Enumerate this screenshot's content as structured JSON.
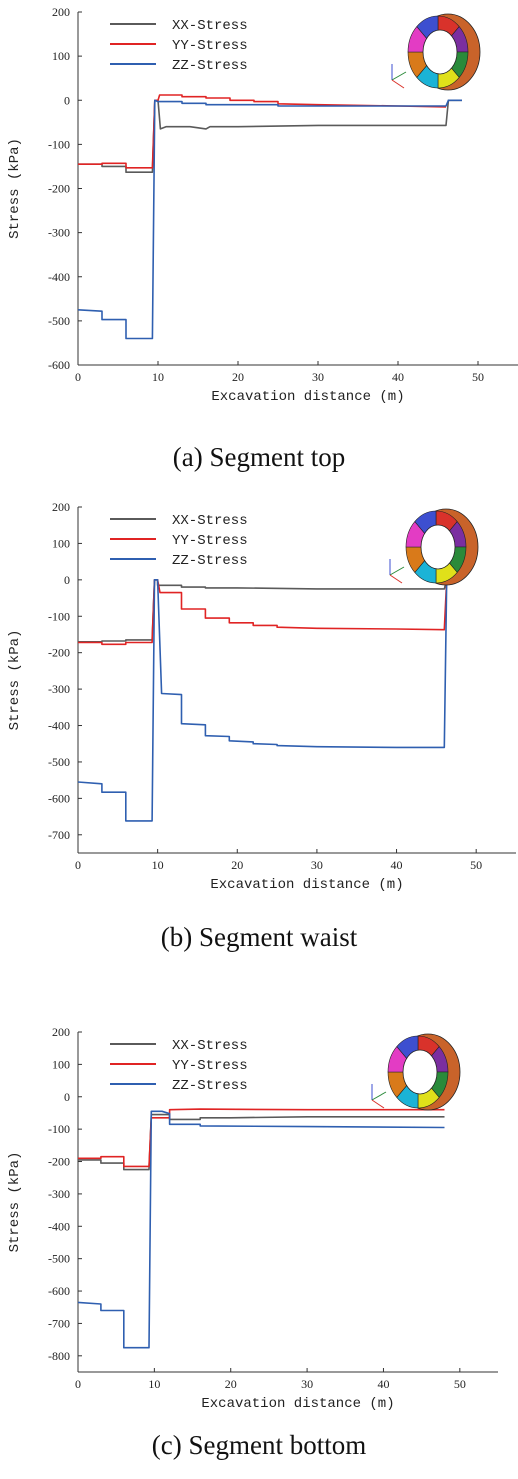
{
  "colors": {
    "xx": "#5a5a5a",
    "yy": "#e02424",
    "zz": "#2f5fb0"
  },
  "chart_data": [
    {
      "type": "line",
      "caption": "(a) Segment top",
      "xlabel": "Excavation distance (m)",
      "ylabel": "Stress (kPa)",
      "xlim": [
        0,
        55
      ],
      "ylim": [
        -600,
        200
      ],
      "xticks": [
        0,
        10,
        20,
        30,
        40,
        50
      ],
      "yticks": [
        200,
        100,
        0,
        -100,
        -200,
        -300,
        -400,
        -500,
        -600
      ],
      "legend_position": "top-left",
      "series": [
        {
          "name": "XX-Stress",
          "color": "#5a5a5a",
          "x": [
            0,
            3,
            3,
            6,
            6,
            9.3,
            9.6,
            10,
            10.3,
            11,
            14,
            16,
            16.5,
            20,
            30,
            46,
            46.3,
            48
          ],
          "y": [
            -145,
            -145,
            -150,
            -150,
            -163,
            -163,
            0,
            0,
            -65,
            -60,
            -60,
            -65,
            -60,
            -60,
            -57,
            -57,
            0,
            0
          ]
        },
        {
          "name": "YY-Stress",
          "color": "#e02424",
          "x": [
            0,
            3,
            3,
            6,
            6,
            9.3,
            9.6,
            10,
            10.2,
            12,
            13,
            13,
            16,
            16,
            19,
            19,
            22,
            22,
            25,
            25,
            30,
            40,
            46
          ],
          "y": [
            -145,
            -145,
            -143,
            -143,
            -153,
            -153,
            0,
            0,
            12,
            12,
            12,
            8,
            8,
            5,
            5,
            0,
            0,
            -3,
            -3,
            -8,
            -10,
            -13,
            -15
          ]
        },
        {
          "name": "ZZ-Stress",
          "color": "#2f5fb0",
          "x": [
            0,
            3,
            3,
            6,
            6,
            9.3,
            9.6,
            10,
            13,
            13,
            16,
            16,
            25,
            25,
            46,
            46.3,
            48
          ],
          "y": [
            -475,
            -478,
            -497,
            -497,
            -540,
            -540,
            0,
            -3,
            -3,
            -7,
            -7,
            -10,
            -10,
            -13,
            -13,
            0,
            0
          ]
        }
      ]
    },
    {
      "type": "line",
      "caption": "(b) Segment waist",
      "xlabel": "Excavation distance (m)",
      "ylabel": "Stress (kPa)",
      "xlim": [
        0,
        55
      ],
      "ylim": [
        -750,
        200
      ],
      "xticks": [
        0,
        10,
        20,
        30,
        40,
        50
      ],
      "yticks": [
        200,
        100,
        0,
        -100,
        -200,
        -300,
        -400,
        -500,
        -600,
        -700
      ],
      "legend_position": "top-left",
      "series": [
        {
          "name": "XX-Stress",
          "color": "#5a5a5a",
          "x": [
            0,
            3,
            3,
            6,
            6,
            9.3,
            9.6,
            10,
            10,
            13,
            13,
            16,
            16,
            20,
            30,
            46,
            46.3,
            48
          ],
          "y": [
            -170,
            -170,
            -168,
            -168,
            -165,
            -165,
            0,
            0,
            -15,
            -15,
            -20,
            -20,
            -22,
            -22,
            -25,
            -25,
            0,
            0
          ]
        },
        {
          "name": "YY-Stress",
          "color": "#e02424",
          "x": [
            0,
            3,
            3,
            6,
            6,
            9.3,
            9.6,
            10,
            10.3,
            13,
            13,
            16,
            16,
            19,
            19,
            22,
            22,
            25,
            25,
            30,
            40,
            46,
            46.3,
            48
          ],
          "y": [
            -172,
            -172,
            -177,
            -177,
            -172,
            -172,
            0,
            0,
            -35,
            -35,
            -80,
            -80,
            -105,
            -105,
            -118,
            -118,
            -125,
            -125,
            -130,
            -133,
            -135,
            -137,
            0,
            0
          ]
        },
        {
          "name": "ZZ-Stress",
          "color": "#2f5fb0",
          "x": [
            0,
            3,
            3,
            6,
            6,
            9.3,
            9.6,
            10,
            10.5,
            13,
            13,
            16,
            16,
            19,
            19,
            22,
            22,
            25,
            25,
            30,
            40,
            46,
            46.3,
            48
          ],
          "y": [
            -555,
            -560,
            -583,
            -583,
            -662,
            -662,
            0,
            0,
            -312,
            -315,
            -395,
            -398,
            -428,
            -430,
            -442,
            -445,
            -450,
            -452,
            -455,
            -458,
            -460,
            -460,
            0,
            0
          ]
        }
      ]
    },
    {
      "type": "line",
      "caption": "(c) Segment bottom",
      "xlabel": "Excavation distance (m)",
      "ylabel": "Stress (kPa)",
      "xlim": [
        0,
        55
      ],
      "ylim": [
        -850,
        200
      ],
      "xticks": [
        0,
        10,
        20,
        30,
        40,
        50
      ],
      "yticks": [
        200,
        100,
        0,
        -100,
        -200,
        -300,
        -400,
        -500,
        -600,
        -700,
        -800
      ],
      "legend_position": "top-left",
      "series": [
        {
          "name": "XX-Stress",
          "color": "#5a5a5a",
          "x": [
            0,
            3,
            3,
            6,
            6,
            9.3,
            9.6,
            12,
            12,
            16,
            16,
            20,
            30,
            48
          ],
          "y": [
            -195,
            -195,
            -205,
            -205,
            -225,
            -225,
            -55,
            -55,
            -70,
            -70,
            -65,
            -65,
            -62,
            -62
          ]
        },
        {
          "name": "YY-Stress",
          "color": "#e02424",
          "x": [
            0,
            3,
            3,
            6,
            6,
            9.3,
            9.6,
            12,
            12,
            16,
            30,
            48
          ],
          "y": [
            -190,
            -190,
            -185,
            -185,
            -215,
            -215,
            -65,
            -65,
            -40,
            -38,
            -40,
            -40
          ]
        },
        {
          "name": "ZZ-Stress",
          "color": "#2f5fb0",
          "x": [
            0,
            3,
            3,
            6,
            6,
            9.3,
            9.6,
            11,
            12,
            12,
            16,
            16,
            30,
            48
          ],
          "y": [
            -635,
            -640,
            -660,
            -660,
            -775,
            -775,
            -45,
            -45,
            -52,
            -85,
            -85,
            -90,
            -92,
            -95
          ]
        }
      ]
    }
  ]
}
